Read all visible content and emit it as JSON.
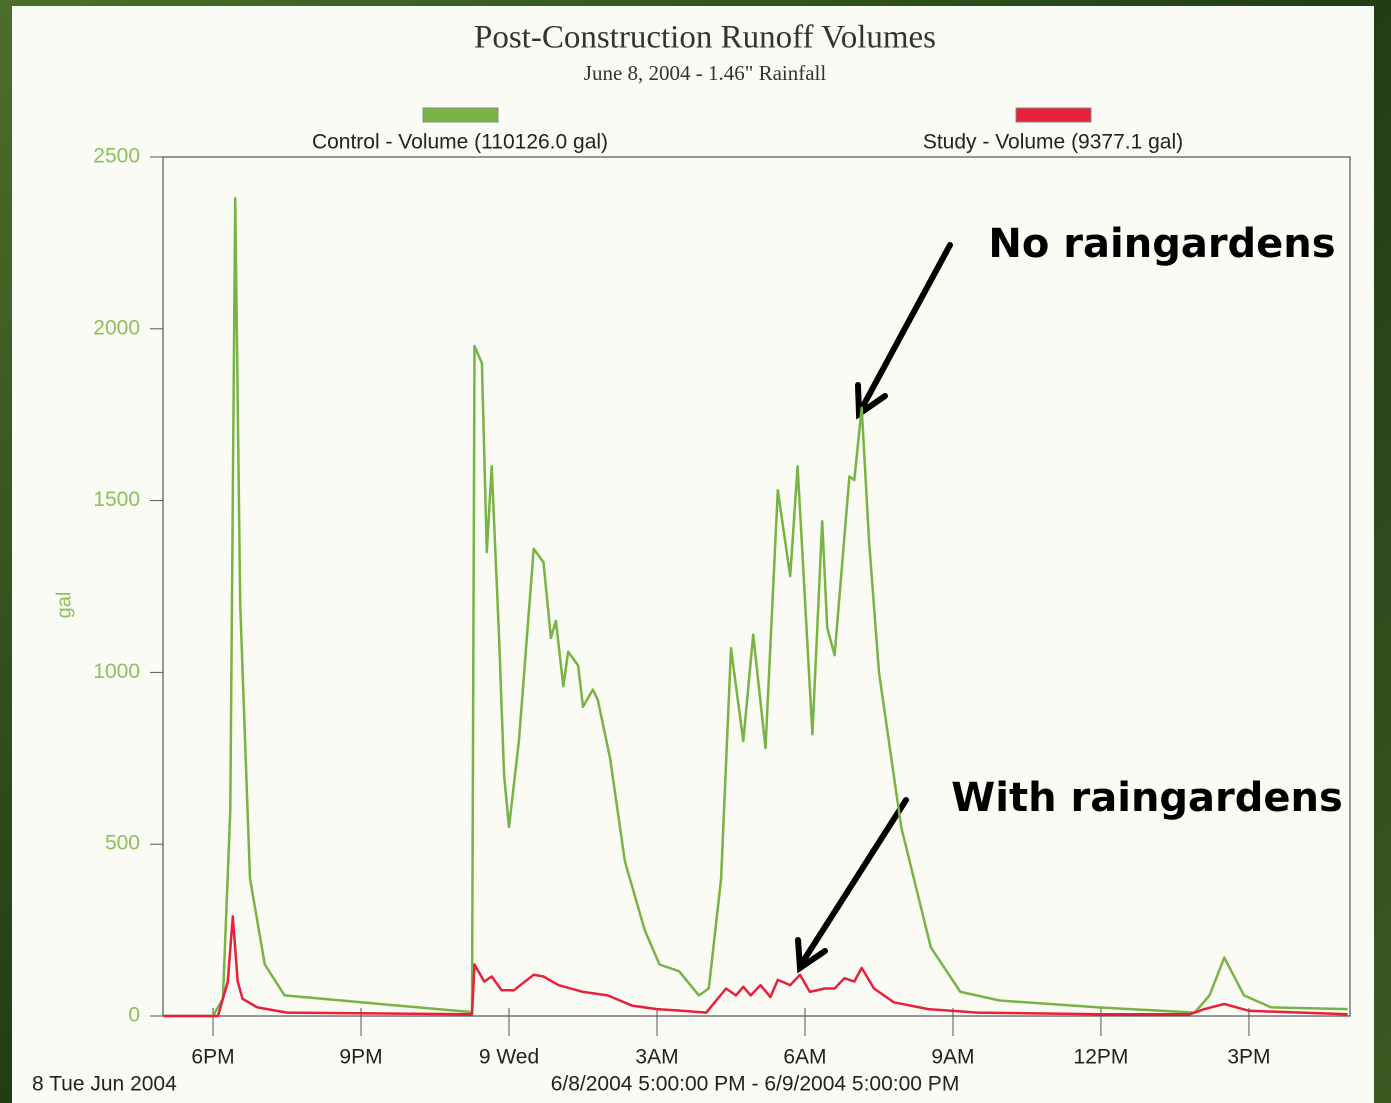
{
  "chart_data": {
    "type": "line",
    "title": "Post-Construction Runoff Volumes",
    "subtitle": "June 8, 2004 - 1.46\" Rainfall",
    "y_label": "gal",
    "date_label": "8 Tue Jun 2004",
    "range_label": "6/8/2004 5:00:00 PM - 6/9/2004 5:00:00 PM",
    "annotations": [
      "No raingardens",
      "With raingardens"
    ],
    "xlim": [
      17,
      41
    ],
    "xticks": [
      {
        "value": 18,
        "label": "6PM"
      },
      {
        "value": 21,
        "label": "9PM"
      },
      {
        "value": 24,
        "label": "9 Wed"
      },
      {
        "value": 27,
        "label": "3AM"
      },
      {
        "value": 30,
        "label": "6AM"
      },
      {
        "value": 33,
        "label": "9AM"
      },
      {
        "value": 36,
        "label": "12PM"
      },
      {
        "value": 39,
        "label": "3PM"
      }
    ],
    "ylim": [
      0,
      2500
    ],
    "yticks": [
      0,
      500,
      1000,
      1500,
      2000,
      2500
    ],
    "series": [
      {
        "name": "Control - Volume (110126.0 gal)",
        "color": "#78b444",
        "x": [
          17.0,
          18.0,
          18.2,
          18.35,
          18.45,
          18.55,
          18.75,
          19.05,
          19.45,
          21.0,
          23.2,
          23.25,
          23.3,
          23.45,
          23.55,
          23.65,
          23.8,
          23.9,
          24.0,
          24.2,
          24.5,
          24.7,
          24.85,
          24.95,
          25.1,
          25.2,
          25.4,
          25.5,
          25.7,
          25.8,
          26.05,
          26.35,
          26.75,
          27.05,
          27.45,
          27.85,
          28.05,
          28.3,
          28.5,
          28.75,
          28.95,
          29.2,
          29.45,
          29.7,
          29.85,
          30.15,
          30.35,
          30.45,
          30.6,
          30.9,
          31.0,
          31.15,
          31.3,
          31.5,
          31.95,
          32.55,
          33.15,
          33.95,
          35.95,
          37.9,
          38.2,
          38.5,
          38.9,
          39.45,
          41.0
        ],
        "values": [
          0,
          0,
          50,
          600,
          2380,
          1200,
          400,
          150,
          60,
          40,
          12,
          10,
          1950,
          1900,
          1350,
          1600,
          1100,
          700,
          550,
          800,
          1360,
          1320,
          1100,
          1150,
          960,
          1060,
          1020,
          900,
          950,
          920,
          750,
          450,
          250,
          150,
          130,
          60,
          80,
          400,
          1070,
          800,
          1110,
          780,
          1530,
          1280,
          1600,
          820,
          1440,
          1130,
          1050,
          1570,
          1560,
          1770,
          1380,
          1000,
          550,
          200,
          70,
          45,
          25,
          10,
          60,
          170,
          60,
          25,
          20
        ]
      },
      {
        "name": "Study - Volume (9377.1 gal)",
        "color": "#e8203a",
        "x": [
          17.0,
          18.1,
          18.3,
          18.4,
          18.5,
          18.6,
          18.9,
          19.5,
          23.25,
          23.3,
          23.5,
          23.65,
          23.85,
          24.1,
          24.5,
          24.7,
          25.0,
          25.5,
          26.0,
          26.5,
          27.0,
          27.5,
          28.0,
          28.4,
          28.6,
          28.75,
          28.9,
          29.1,
          29.3,
          29.45,
          29.7,
          29.9,
          30.1,
          30.4,
          30.6,
          30.8,
          31.0,
          31.15,
          31.4,
          31.8,
          32.5,
          33.5,
          36.0,
          37.8,
          38.1,
          38.5,
          39.0,
          41.0
        ],
        "values": [
          0,
          0,
          100,
          290,
          100,
          50,
          25,
          10,
          5,
          150,
          100,
          115,
          75,
          75,
          120,
          115,
          90,
          70,
          60,
          30,
          20,
          15,
          10,
          80,
          60,
          85,
          60,
          90,
          55,
          105,
          90,
          120,
          70,
          80,
          80,
          110,
          100,
          140,
          80,
          40,
          20,
          10,
          5,
          5,
          20,
          35,
          15,
          5
        ]
      }
    ]
  }
}
